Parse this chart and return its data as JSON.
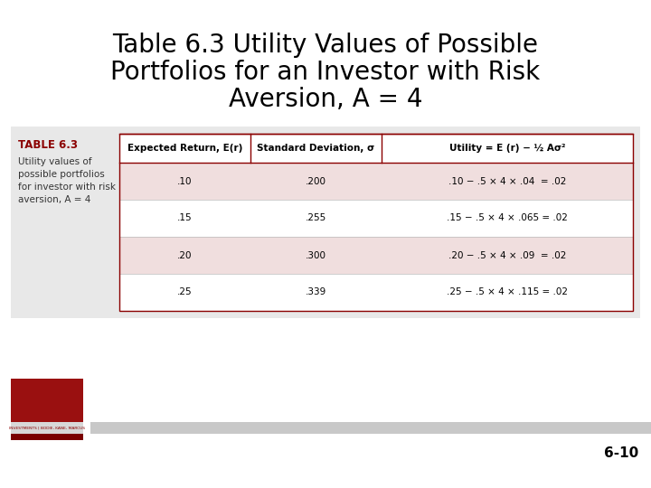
{
  "title_line1": "Table 6.3 Utility Values of Possible",
  "title_line2": "Portfolios for an Investor with Risk",
  "title_line3": "Aversion, A = 4",
  "title_fontsize": 20,
  "title_color": "#000000",
  "background_color": "#ffffff",
  "table_label": "TABLE 6.3",
  "table_description": "Utility values of\npossible portfolios\nfor investor with risk\naversion, A = 4",
  "col_headers": [
    "Expected Return, E(r)",
    "Standard Deviation, σ",
    "Utility = E (r) − ½ Aσ²"
  ],
  "rows": [
    [
      ".10",
      ".200",
      ".10 − .5 × 4 × .04  = .02"
    ],
    [
      ".15",
      ".255",
      ".15 − .5 × 4 × .065 = .02"
    ],
    [
      ".20",
      ".300",
      ".20 − .5 × 4 × .09  = .02"
    ],
    [
      ".25",
      ".339",
      ".25 − .5 × 4 × .115 = .02"
    ]
  ],
  "row_bg_shaded": "#f0dede",
  "row_bg_white": "#ffffff",
  "header_bg": "#ffffff",
  "table_border_color": "#8b0000",
  "outer_bg_color": "#e8e8e8",
  "label_text_color": "#8b0000",
  "desc_text_color": "#333333",
  "page_number": "6-10",
  "footer_bar_color": "#c8c8c8",
  "logo_dark": "#7a0000",
  "logo_mid": "#9a1010",
  "logo_light_stripe": "#cccccc"
}
